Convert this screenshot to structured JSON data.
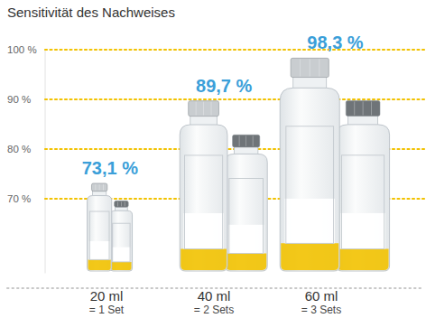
{
  "chart_data": {
    "type": "bar",
    "title": "Sensitivität des Nachweises",
    "categories": [
      "20 ml",
      "40 ml",
      "60 ml"
    ],
    "category_sublabels": [
      "= 1 Set",
      "= 2 Sets",
      "= 3 Sets"
    ],
    "values": [
      73.1,
      89.7,
      98.3
    ],
    "value_labels": [
      "73,1 %",
      "89,7 %",
      "98,3 %"
    ],
    "data_labels": true,
    "color": "#f2c200",
    "ylim": [
      55,
      100
    ],
    "yticks": [
      {
        "value": 70,
        "label": "70 %"
      },
      {
        "value": 80,
        "label": "80 %"
      },
      {
        "value": 90,
        "label": "90 %"
      },
      {
        "value": 100,
        "label": "100 %"
      }
    ],
    "grid": true
  }
}
